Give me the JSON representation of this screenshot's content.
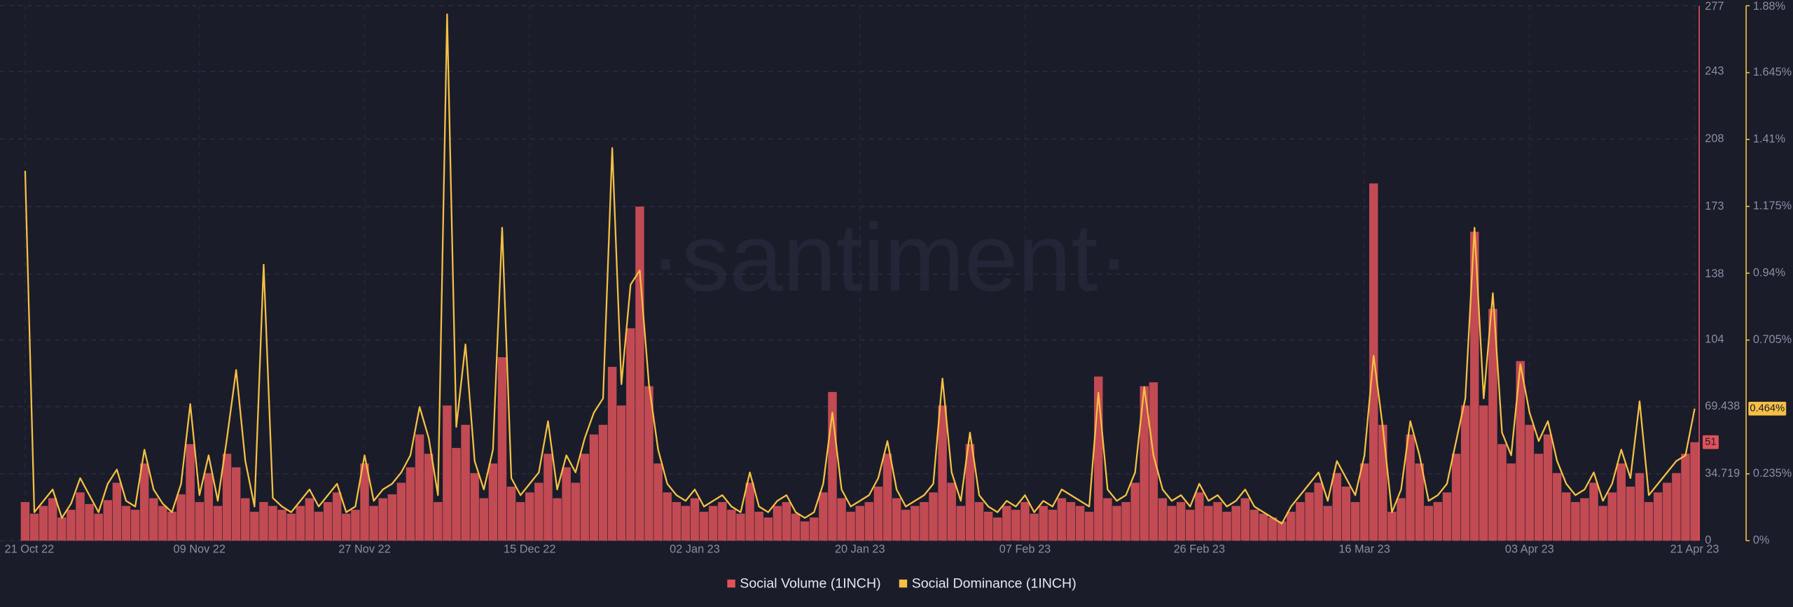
{
  "chart_data": {
    "type": "combo",
    "watermark": "·santiment·",
    "categories": [
      "21 Oct 22",
      null,
      null,
      null,
      null,
      null,
      null,
      null,
      null,
      null,
      null,
      null,
      null,
      null,
      null,
      null,
      null,
      null,
      null,
      "09 Nov 22",
      null,
      null,
      null,
      null,
      null,
      null,
      null,
      null,
      null,
      null,
      null,
      null,
      null,
      null,
      null,
      null,
      null,
      "27 Nov 22",
      null,
      null,
      null,
      null,
      null,
      null,
      null,
      null,
      null,
      null,
      null,
      null,
      null,
      null,
      null,
      null,
      null,
      "15 Dec 22",
      null,
      null,
      null,
      null,
      null,
      null,
      null,
      null,
      null,
      null,
      null,
      null,
      null,
      null,
      null,
      null,
      null,
      "02 Jan 23",
      null,
      null,
      null,
      null,
      null,
      null,
      null,
      null,
      null,
      null,
      null,
      null,
      null,
      null,
      null,
      null,
      null,
      "20 Jan 23",
      null,
      null,
      null,
      null,
      null,
      null,
      null,
      null,
      null,
      null,
      null,
      null,
      null,
      null,
      null,
      null,
      null,
      "07 Feb 23",
      null,
      null,
      null,
      null,
      null,
      null,
      null,
      null,
      null,
      null,
      null,
      null,
      null,
      null,
      null,
      null,
      null,
      null,
      "26 Feb 23",
      null,
      null,
      null,
      null,
      null,
      null,
      null,
      null,
      null,
      null,
      null,
      null,
      null,
      null,
      null,
      null,
      null,
      "16 Mar 23",
      null,
      null,
      null,
      null,
      null,
      null,
      null,
      null,
      null,
      null,
      null,
      null,
      null,
      null,
      null,
      null,
      null,
      "03 Apr 23",
      null,
      null,
      null,
      null,
      null,
      null,
      null,
      null,
      null,
      null,
      null,
      null,
      null,
      null,
      null,
      null,
      null,
      "21 Apr 23"
    ],
    "series": [
      {
        "name": "Social Volume (1INCH)",
        "type": "bar",
        "color": "#e0525a",
        "values": [
          20,
          14,
          18,
          22,
          12,
          16,
          25,
          19,
          14,
          21,
          30,
          18,
          16,
          40,
          22,
          18,
          15,
          24,
          50,
          20,
          35,
          18,
          45,
          38,
          22,
          15,
          20,
          18,
          16,
          14,
          18,
          22,
          15,
          20,
          25,
          14,
          16,
          40,
          18,
          22,
          24,
          30,
          38,
          55,
          45,
          20,
          70,
          48,
          60,
          35,
          22,
          40,
          95,
          28,
          20,
          25,
          30,
          45,
          22,
          38,
          30,
          45,
          55,
          60,
          90,
          70,
          110,
          173,
          80,
          40,
          25,
          20,
          18,
          22,
          15,
          18,
          20,
          16,
          14,
          30,
          15,
          12,
          18,
          20,
          14,
          10,
          12,
          25,
          77,
          22,
          15,
          18,
          20,
          28,
          45,
          22,
          16,
          18,
          20,
          25,
          70,
          30,
          18,
          50,
          20,
          15,
          12,
          18,
          16,
          20,
          14,
          18,
          16,
          22,
          20,
          18,
          15,
          85,
          22,
          18,
          20,
          30,
          80,
          82,
          22,
          18,
          20,
          16,
          25,
          18,
          20,
          15,
          18,
          22,
          16,
          14,
          12,
          10,
          15,
          20,
          25,
          30,
          18,
          35,
          28,
          20,
          40,
          185,
          60,
          15,
          22,
          55,
          40,
          18,
          20,
          25,
          45,
          70,
          160,
          70,
          120,
          50,
          40,
          93,
          60,
          45,
          55,
          35,
          25,
          20,
          22,
          30,
          18,
          25,
          40,
          28,
          35,
          20,
          25,
          30,
          35,
          45,
          51
        ]
      },
      {
        "name": "Social Dominance (1INCH)",
        "type": "line",
        "color": "#f5c044",
        "axis": "y2",
        "last_label": "0.464%",
        "values": [
          1.3,
          0.1,
          0.14,
          0.18,
          0.08,
          0.13,
          0.22,
          0.16,
          0.1,
          0.2,
          0.25,
          0.14,
          0.12,
          0.32,
          0.18,
          0.13,
          0.1,
          0.2,
          0.48,
          0.16,
          0.3,
          0.14,
          0.36,
          0.6,
          0.28,
          0.12,
          0.97,
          0.15,
          0.12,
          0.1,
          0.14,
          0.18,
          0.12,
          0.16,
          0.2,
          0.1,
          0.12,
          0.3,
          0.14,
          0.18,
          0.2,
          0.24,
          0.3,
          0.47,
          0.36,
          0.16,
          1.85,
          0.4,
          0.69,
          0.28,
          0.18,
          0.32,
          1.1,
          0.22,
          0.16,
          0.2,
          0.24,
          0.42,
          0.18,
          0.3,
          0.24,
          0.36,
          0.45,
          0.5,
          1.38,
          0.55,
          0.9,
          0.95,
          0.55,
          0.32,
          0.2,
          0.16,
          0.14,
          0.18,
          0.12,
          0.14,
          0.16,
          0.12,
          0.1,
          0.24,
          0.12,
          0.1,
          0.14,
          0.16,
          0.1,
          0.08,
          0.1,
          0.2,
          0.45,
          0.18,
          0.12,
          0.14,
          0.16,
          0.22,
          0.35,
          0.18,
          0.12,
          0.14,
          0.16,
          0.2,
          0.57,
          0.24,
          0.14,
          0.38,
          0.16,
          0.12,
          0.1,
          0.14,
          0.12,
          0.16,
          0.1,
          0.14,
          0.12,
          0.18,
          0.16,
          0.14,
          0.12,
          0.52,
          0.18,
          0.14,
          0.16,
          0.24,
          0.54,
          0.3,
          0.18,
          0.14,
          0.16,
          0.12,
          0.2,
          0.14,
          0.16,
          0.12,
          0.14,
          0.18,
          0.12,
          0.1,
          0.08,
          0.06,
          0.12,
          0.16,
          0.2,
          0.24,
          0.14,
          0.28,
          0.22,
          0.16,
          0.3,
          0.65,
          0.4,
          0.1,
          0.18,
          0.42,
          0.3,
          0.14,
          0.16,
          0.2,
          0.35,
          0.5,
          1.1,
          0.5,
          0.87,
          0.38,
          0.3,
          0.62,
          0.45,
          0.35,
          0.42,
          0.28,
          0.2,
          0.16,
          0.18,
          0.24,
          0.14,
          0.2,
          0.32,
          0.22,
          0.49,
          0.16,
          0.2,
          0.24,
          0.28,
          0.3,
          0.464
        ]
      }
    ],
    "ylim": [
      0,
      277
    ],
    "yticks": [
      0,
      34.719,
      69.438,
      104,
      138,
      173,
      208,
      243,
      277
    ],
    "y2lim": [
      0,
      1.88
    ],
    "y2ticks": [
      {
        "value": 0,
        "label": "0%"
      },
      {
        "value": 0.235,
        "label": "0.235%"
      },
      {
        "value": 0.705,
        "label": "0.705%"
      },
      {
        "value": 0.94,
        "label": "0.94%"
      },
      {
        "value": 1.175,
        "label": "1.175%"
      },
      {
        "value": 1.41,
        "label": "1.41%"
      },
      {
        "value": 1.645,
        "label": "1.645%"
      },
      {
        "value": 1.88,
        "label": "1.88%"
      }
    ],
    "grid": true
  }
}
